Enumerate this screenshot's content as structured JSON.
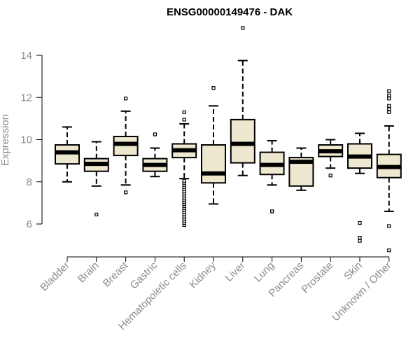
{
  "chart_data": {
    "type": "boxplot",
    "title": "ENSG00000149476 - DAK",
    "xlabel": "",
    "ylabel": "Expression",
    "ylim": [
      4.6,
      15.6
    ],
    "yticks": [
      6,
      8,
      10,
      12,
      14
    ],
    "grid": false,
    "box_fill": "#efe8d1",
    "line_color": "#000000",
    "axis_text_color": "#8c8c8c",
    "categories": [
      "Bladder",
      "Brain",
      "Breast",
      "Gastric",
      "Hematopoietic cells",
      "Kidney",
      "Liver",
      "Lung",
      "Pancreas",
      "Prostate",
      "Skin",
      "Unknown / Other"
    ],
    "boxes": [
      {
        "category": "Bladder",
        "whisker_low": 8.0,
        "q1": 8.85,
        "median": 9.4,
        "q3": 9.75,
        "whisker_high": 10.6,
        "outliers": []
      },
      {
        "category": "Brain",
        "whisker_low": 7.8,
        "q1": 8.5,
        "median": 8.85,
        "q3": 9.1,
        "whisker_high": 9.9,
        "outliers": [
          6.45
        ]
      },
      {
        "category": "Breast",
        "whisker_low": 7.85,
        "q1": 9.25,
        "median": 9.8,
        "q3": 10.15,
        "whisker_high": 11.35,
        "outliers": [
          7.5,
          11.95
        ]
      },
      {
        "category": "Gastric",
        "whisker_low": 8.25,
        "q1": 8.5,
        "median": 8.8,
        "q3": 9.1,
        "whisker_high": 9.6,
        "outliers": [
          10.25
        ]
      },
      {
        "category": "Hematopoietic cells",
        "whisker_low": 8.15,
        "q1": 9.15,
        "median": 9.5,
        "q3": 9.8,
        "whisker_high": 10.75,
        "outliers": [
          5.95,
          6.05,
          6.15,
          6.25,
          6.35,
          6.45,
          6.55,
          6.65,
          6.75,
          6.85,
          6.95,
          7.05,
          7.15,
          7.25,
          7.35,
          7.45,
          7.55,
          7.65,
          7.75,
          7.85,
          7.95,
          8.05,
          10.95,
          11.3
        ]
      },
      {
        "category": "Kidney",
        "whisker_low": 6.95,
        "q1": 7.95,
        "median": 8.4,
        "q3": 9.75,
        "whisker_high": 11.6,
        "outliers": [
          12.45
        ]
      },
      {
        "category": "Liver",
        "whisker_low": 8.3,
        "q1": 8.9,
        "median": 9.8,
        "q3": 10.95,
        "whisker_high": 13.75,
        "outliers": [
          15.3
        ]
      },
      {
        "category": "Lung",
        "whisker_low": 7.85,
        "q1": 8.35,
        "median": 8.8,
        "q3": 9.4,
        "whisker_high": 9.95,
        "outliers": [
          6.6
        ]
      },
      {
        "category": "Pancreas",
        "whisker_low": 7.6,
        "q1": 7.8,
        "median": 8.95,
        "q3": 9.15,
        "whisker_high": 9.6,
        "outliers": []
      },
      {
        "category": "Prostate",
        "whisker_low": 8.65,
        "q1": 9.2,
        "median": 9.45,
        "q3": 9.75,
        "whisker_high": 10.0,
        "outliers": [
          8.3
        ]
      },
      {
        "category": "Skin",
        "whisker_low": 8.4,
        "q1": 8.65,
        "median": 9.2,
        "q3": 9.8,
        "whisker_high": 10.3,
        "outliers": [
          5.2,
          5.35,
          6.05
        ]
      },
      {
        "category": "Unknown / Other",
        "whisker_low": 6.6,
        "q1": 8.2,
        "median": 8.7,
        "q3": 9.3,
        "whisker_high": 10.65,
        "outliers": [
          4.75,
          5.9,
          11.3,
          11.45,
          11.6,
          11.95,
          12.1,
          12.3
        ]
      }
    ]
  }
}
